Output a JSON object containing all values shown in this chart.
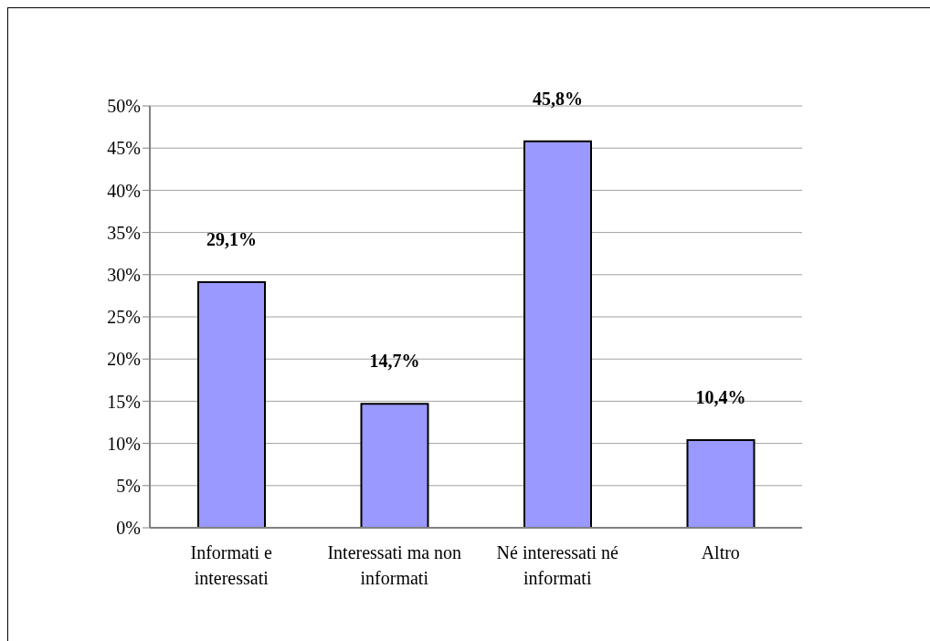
{
  "chart_data": {
    "type": "bar",
    "categories": [
      "Informati e interessati",
      "Interessati ma non informati",
      "Né interessati né informati",
      "Altro"
    ],
    "values": [
      29.1,
      14.7,
      45.8,
      10.4
    ],
    "value_labels": [
      "29,1%",
      "14,7%",
      "45,8%",
      "10,4%"
    ],
    "color": "#9999ff",
    "ylim": [
      0,
      50
    ],
    "yticks": [
      {
        "value": 0,
        "label": "0%"
      },
      {
        "value": 5,
        "label": "5%"
      },
      {
        "value": 10,
        "label": "10%"
      },
      {
        "value": 15,
        "label": "15%"
      },
      {
        "value": 20,
        "label": "20%"
      },
      {
        "value": 25,
        "label": "25%"
      },
      {
        "value": 30,
        "label": "30%"
      },
      {
        "value": 35,
        "label": "35%"
      },
      {
        "value": 40,
        "label": "40%"
      },
      {
        "value": 45,
        "label": "45%"
      },
      {
        "value": 50,
        "label": "50%"
      }
    ],
    "grid": "y"
  }
}
